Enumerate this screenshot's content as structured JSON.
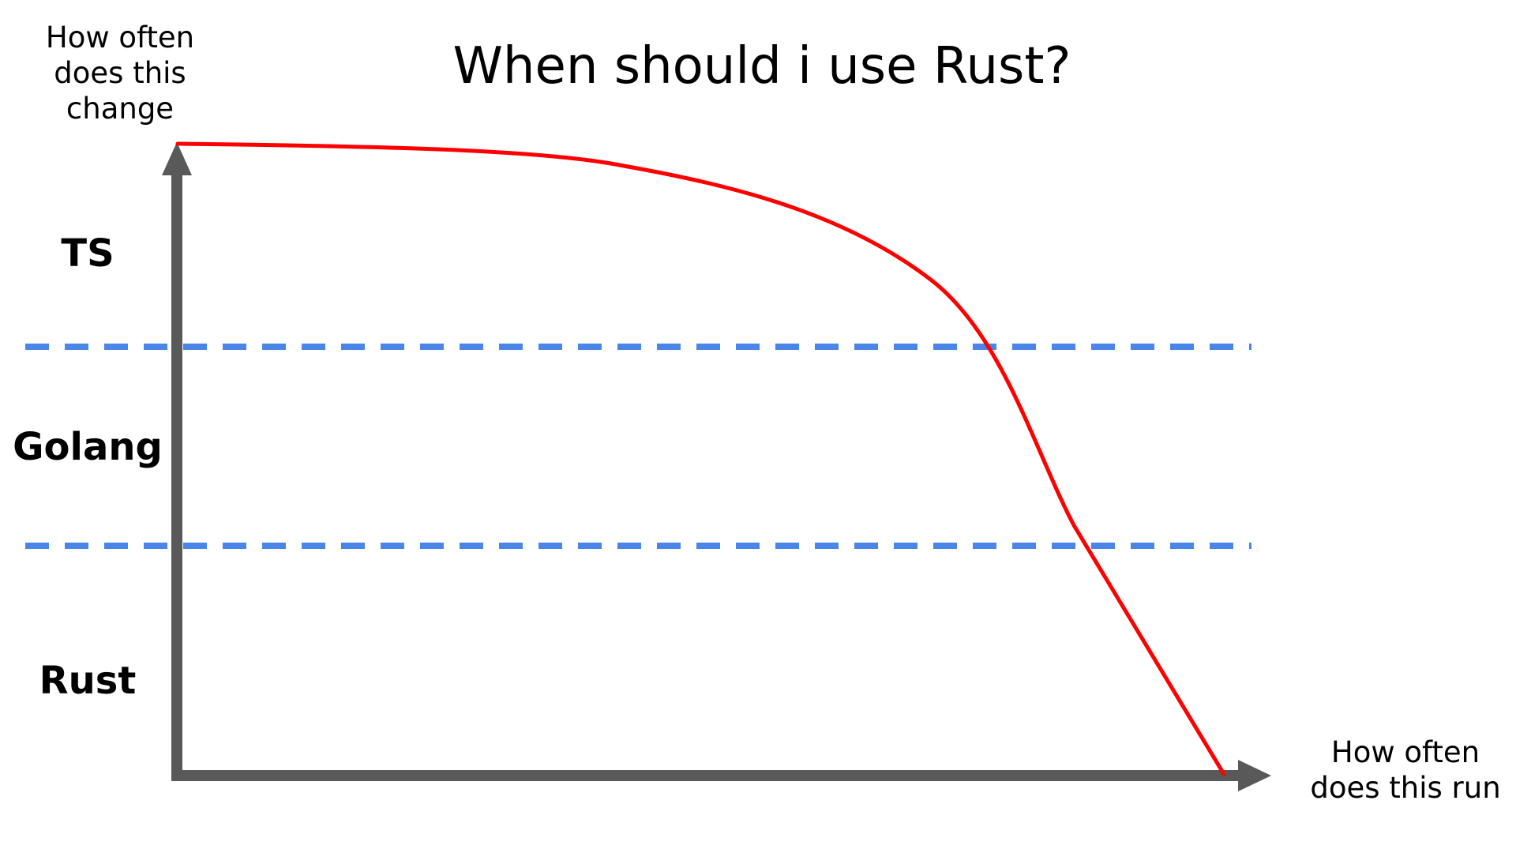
{
  "title": "When should i use Rust?",
  "y_axis": {
    "label_lines": [
      "How often",
      "does this",
      "change"
    ]
  },
  "x_axis": {
    "label_lines": [
      "How often",
      "does this run"
    ]
  },
  "bands": [
    {
      "label": "TS"
    },
    {
      "label": "Golang"
    },
    {
      "label": "Rust"
    }
  ],
  "colors": {
    "axis": "#595959",
    "curve": "#ff0000",
    "divider": "#4a86e8",
    "text": "#000000"
  }
}
